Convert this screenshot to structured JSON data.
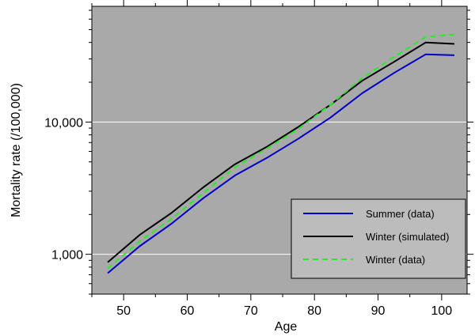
{
  "chart_data": {
    "type": "line",
    "title": "",
    "xlabel": "Age",
    "ylabel": "Mortality rate (/100,000)",
    "yscale": "log",
    "xlim": [
      45,
      104
    ],
    "ylim": [
      500,
      75000
    ],
    "grid": "horizontal",
    "legend_position": "bottom-right",
    "background_color": "#a9a9a9",
    "x_ticks": [
      50,
      60,
      70,
      80,
      90,
      100
    ],
    "x_tick_labels": [
      "50",
      "60",
      "70",
      "80",
      "90",
      "100"
    ],
    "y_ticks": [
      1000,
      10000
    ],
    "y_tick_labels": [
      "1,000",
      "10,000"
    ],
    "x": [
      47.5,
      52.5,
      57.5,
      62.5,
      67.5,
      72.5,
      77.5,
      82.5,
      87.5,
      92.5,
      97.5,
      102
    ],
    "series": [
      {
        "name": "Summer (data)",
        "color": "#0000cc",
        "style": "solid",
        "values": [
          720,
          1150,
          1700,
          2650,
          3950,
          5350,
          7500,
          10800,
          16500,
          23500,
          32500,
          32000
        ]
      },
      {
        "name": "Winter (simulated)",
        "color": "#000000",
        "style": "solid",
        "values": [
          870,
          1400,
          2050,
          3200,
          4800,
          6500,
          9200,
          13500,
          20500,
          28500,
          40000,
          39000
        ]
      },
      {
        "name": "Winter (data)",
        "color": "#22ee22",
        "style": "dashed",
        "values": [
          780,
          1250,
          1850,
          2900,
          4550,
          6300,
          8900,
          13500,
          21500,
          31000,
          44000,
          46000
        ]
      }
    ]
  }
}
